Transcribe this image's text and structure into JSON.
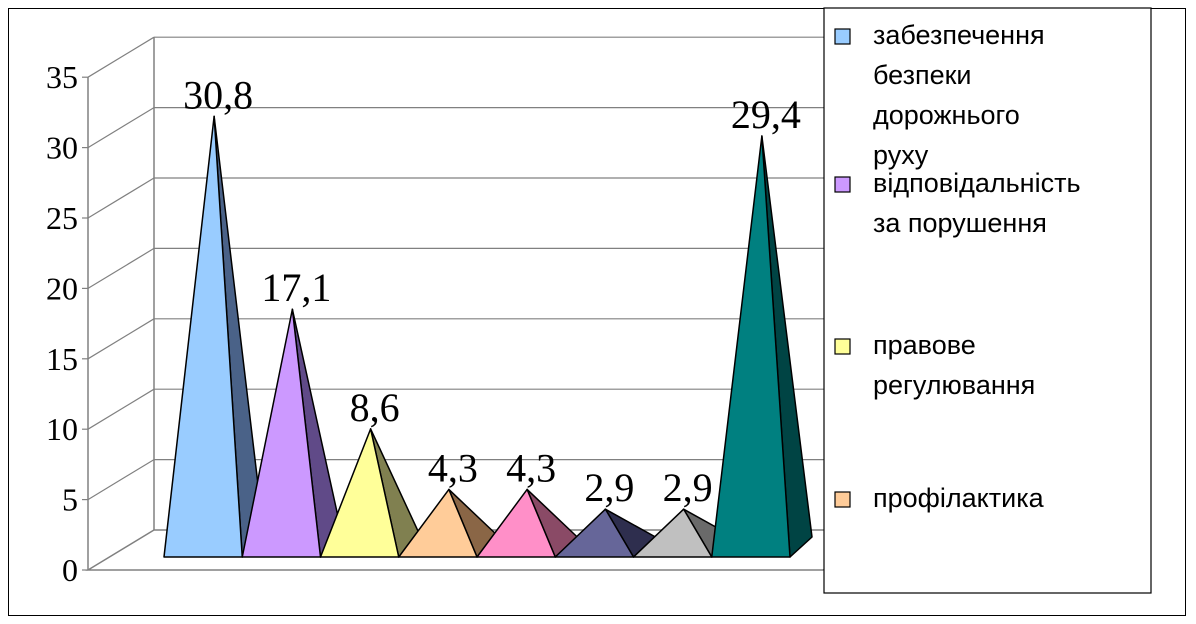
{
  "chart_data": {
    "type": "bar",
    "style": "3d-pyramid",
    "ylim": [
      0,
      35
    ],
    "yticks": [
      "0",
      "5",
      "10",
      "15",
      "20",
      "25",
      "30",
      "35"
    ],
    "grid": true,
    "legend_position": "right",
    "series": [
      {
        "name": "забезпечення безпеки дорожнього руху",
        "value": 30.8,
        "label": "30,8",
        "color": "#99ccff",
        "shade": "#4a6288"
      },
      {
        "name": "відповідальність за порушення",
        "value": 17.1,
        "label": "17,1",
        "color": "#cc99ff",
        "shade": "#604a88"
      },
      {
        "name": "правове регулювання",
        "value": 8.6,
        "label": "8,6",
        "color": "#ffff99",
        "shade": "#808050"
      },
      {
        "name": "профілактика",
        "value": 4.3,
        "label": "4,3",
        "color": "#ffcc99",
        "shade": "#8a6646"
      },
      {
        "name": "",
        "value": 4.3,
        "label": "4,3",
        "color": "#ff8fc8",
        "shade": "#8a4a66"
      },
      {
        "name": "",
        "value": 2.9,
        "label": "2,9",
        "color": "#666699",
        "shade": "#2e2e4e"
      },
      {
        "name": "",
        "value": 2.9,
        "label": "2,9",
        "color": "#c0c0c0",
        "shade": "#6a6a6a"
      },
      {
        "name": "",
        "value": 29.4,
        "label": "29,4",
        "color": "#008080",
        "shade": "#004444"
      }
    ],
    "legend": [
      {
        "lines": [
          "забезпечення",
          "безпеки",
          "дорожнього",
          "руху"
        ],
        "color": "#99ccff"
      },
      {
        "lines": [
          "відповідальність",
          "за порушення"
        ],
        "color": "#cc99ff"
      },
      {
        "lines": [
          "правове",
          "регулювання"
        ],
        "color": "#ffff99"
      },
      {
        "lines": [
          "профілактика"
        ],
        "color": "#ffcc99"
      }
    ]
  }
}
